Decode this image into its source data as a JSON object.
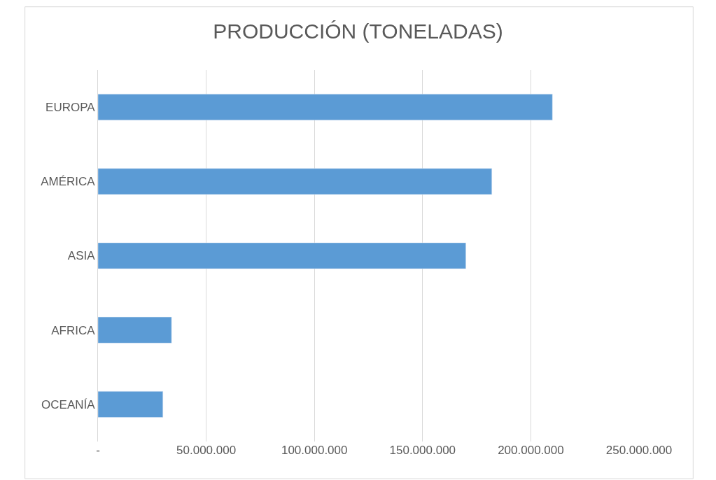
{
  "chart_data": {
    "type": "bar",
    "orientation": "horizontal",
    "title": "PRODUCCIÓN (TONELADAS)",
    "categories": [
      "EUROPA",
      "AMÉRICA",
      "ASIA",
      "AFRICA",
      "OCEANÍA"
    ],
    "values": [
      210000000,
      182000000,
      170000000,
      34000000,
      30000000
    ],
    "color": "#5b9bd5",
    "xlim": [
      0,
      250000000
    ],
    "xticks": [
      {
        "value": 0,
        "label": "-"
      },
      {
        "value": 50000000,
        "label": "50.000.000"
      },
      {
        "value": 100000000,
        "label": "100.000.000"
      },
      {
        "value": 150000000,
        "label": "150.000.000"
      },
      {
        "value": 200000000,
        "label": "200.000.000"
      },
      {
        "value": 250000000,
        "label": "250.000.000"
      }
    ],
    "grid": "x"
  }
}
